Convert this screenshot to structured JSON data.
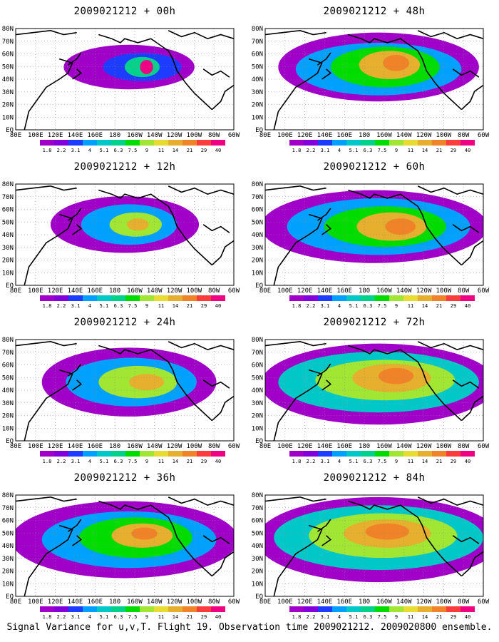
{
  "panels": [
    {
      "title": "2009021212 + 00h"
    },
    {
      "title": "2009021212 + 48h"
    },
    {
      "title": "2009021212 + 12h"
    },
    {
      "title": "2009021212 + 60h"
    },
    {
      "title": "2009021212 + 24h"
    },
    {
      "title": "2009021212 + 72h"
    },
    {
      "title": "2009021212 + 36h"
    },
    {
      "title": "2009021212 + 84h"
    }
  ],
  "lat_labels": [
    "80N",
    "70N",
    "60N",
    "50N",
    "40N",
    "30N",
    "20N",
    "10N",
    "EQ"
  ],
  "lon_labels": [
    "80E",
    "100E",
    "120E",
    "140E",
    "160E",
    "180",
    "160W",
    "140W",
    "120W",
    "100W",
    "80W",
    "60W"
  ],
  "legend": {
    "labels": [
      "1.8",
      "2.2",
      "3.1",
      "4",
      "5.1",
      "6.3",
      "7.5",
      "9",
      "11",
      "14",
      "21",
      "29",
      "40"
    ],
    "colors": [
      "#a000c8",
      "#8200dc",
      "#1e3cff",
      "#00a0ff",
      "#00c8c8",
      "#00d28c",
      "#00dc00",
      "#a0e632",
      "#e6dc32",
      "#e6af2d",
      "#f08228",
      "#fa3c3c",
      "#f00082"
    ]
  },
  "caption": "Signal Variance for u,v,T. Flight 19. Observation time 2009021212. 2009020800 ensemble."
}
